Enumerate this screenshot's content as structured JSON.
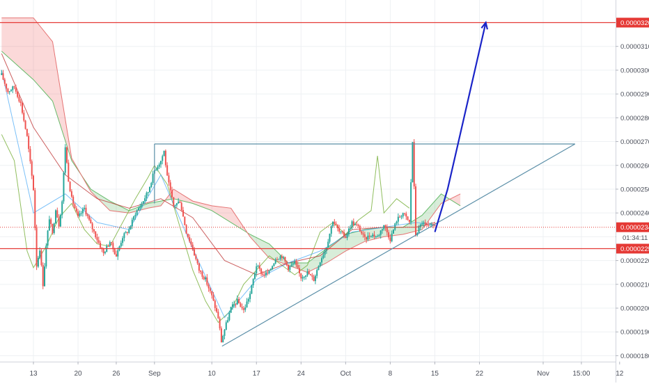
{
  "chart_data": {
    "type": "candlestick",
    "symbol_quote": "BTC",
    "y_axis": {
      "position": "right",
      "ylim": [
        1.775e-05,
        3.295e-05
      ],
      "ticks": [
        "0.00003200",
        "0.00003100",
        "0.00003000",
        "0.00002900",
        "0.00002800",
        "0.00002700",
        "0.00002600",
        "0.00002500",
        "0.00002400",
        "0.00002340",
        "0.00002300",
        "0.00002250",
        "0.00002200",
        "0.00002100",
        "0.00002000",
        "0.00001900",
        "0.00001800"
      ],
      "tick_values": [
        3.2e-05,
        3.1e-05,
        3e-05,
        2.9e-05,
        2.8e-05,
        2.7e-05,
        2.6e-05,
        2.5e-05,
        2.4e-05,
        2.34e-05,
        2.3e-05,
        2.25e-05,
        2.2e-05,
        2.1e-05,
        2e-05,
        1.9e-05,
        1.8e-05
      ],
      "highlighted": [
        {
          "label": "0.00003200",
          "value": 3.2e-05,
          "color": "#e53935"
        },
        {
          "label": "0.00002340",
          "value": 2.34e-05,
          "color": "#e53935"
        },
        {
          "label": "0.00002250",
          "value": 2.25e-05,
          "color": "#e53935"
        }
      ],
      "countdown_label": "01:34:11"
    },
    "x_axis": {
      "ticks": [
        {
          "label": "13",
          "day": 0
        },
        {
          "label": "20",
          "day": 7
        },
        {
          "label": "26",
          "day": 13
        },
        {
          "label": "Sep",
          "day": 19
        },
        {
          "label": "10",
          "day": 28
        },
        {
          "label": "17",
          "day": 35
        },
        {
          "label": "24",
          "day": 42
        },
        {
          "label": "Oct",
          "day": 49
        },
        {
          "label": "8",
          "day": 56
        },
        {
          "label": "15",
          "day": 63
        },
        {
          "label": "22",
          "day": 70
        },
        {
          "label": "Nov",
          "day": 80
        },
        {
          "label": "15:00",
          "day": 86
        },
        {
          "label": "12",
          "day": 92
        }
      ]
    },
    "grid": true,
    "price_series": [
      [
        -5.0,
        2.98e-05
      ],
      [
        -4.0,
        2.91e-05
      ],
      [
        -3.0,
        2.93e-05
      ],
      [
        -2.0,
        2.86e-05
      ],
      [
        -1.0,
        2.72e-05
      ],
      [
        0.0,
        2.5e-05
      ],
      [
        0.5,
        2.18e-05
      ],
      [
        1.0,
        2.25e-05
      ],
      [
        1.5,
        2.1e-05
      ],
      [
        2.0,
        2.26e-05
      ],
      [
        2.5,
        2.38e-05
      ],
      [
        3.0,
        2.31e-05
      ],
      [
        3.5,
        2.42e-05
      ],
      [
        4.0,
        2.35e-05
      ],
      [
        4.5,
        2.45e-05
      ],
      [
        5.0,
        2.68e-05
      ],
      [
        5.5,
        2.54e-05
      ],
      [
        6.0,
        2.46e-05
      ],
      [
        7.0,
        2.38e-05
      ],
      [
        8.0,
        2.42e-05
      ],
      [
        9.0,
        2.35e-05
      ],
      [
        10.0,
        2.29e-05
      ],
      [
        11.0,
        2.23e-05
      ],
      [
        12.0,
        2.28e-05
      ],
      [
        13.0,
        2.22e-05
      ],
      [
        14.0,
        2.3e-05
      ],
      [
        15.0,
        2.33e-05
      ],
      [
        16.0,
        2.4e-05
      ],
      [
        17.0,
        2.44e-05
      ],
      [
        18.0,
        2.49e-05
      ],
      [
        19.0,
        2.58e-05
      ],
      [
        20.0,
        2.62e-05
      ],
      [
        20.5,
        2.66e-05
      ],
      [
        21.0,
        2.55e-05
      ],
      [
        22.0,
        2.43e-05
      ],
      [
        23.0,
        2.45e-05
      ],
      [
        24.0,
        2.32e-05
      ],
      [
        25.0,
        2.25e-05
      ],
      [
        26.0,
        2.16e-05
      ],
      [
        27.0,
        2.12e-05
      ],
      [
        28.0,
        2.05e-05
      ],
      [
        29.0,
        1.96e-05
      ],
      [
        29.5,
        1.86e-05
      ],
      [
        30.0,
        1.91e-05
      ],
      [
        31.0,
        2e-05
      ],
      [
        32.0,
        2.03e-05
      ],
      [
        33.0,
        1.99e-05
      ],
      [
        34.0,
        2.06e-05
      ],
      [
        35.0,
        2.18e-05
      ],
      [
        36.0,
        2.14e-05
      ],
      [
        37.0,
        2.15e-05
      ],
      [
        38.0,
        2.21e-05
      ],
      [
        39.0,
        2.22e-05
      ],
      [
        40.0,
        2.17e-05
      ],
      [
        41.0,
        2.19e-05
      ],
      [
        42.0,
        2.13e-05
      ],
      [
        43.0,
        2.15e-05
      ],
      [
        44.0,
        2.12e-05
      ],
      [
        45.0,
        2.2e-05
      ],
      [
        46.0,
        2.26e-05
      ],
      [
        47.0,
        2.37e-05
      ],
      [
        48.0,
        2.32e-05
      ],
      [
        49.0,
        2.3e-05
      ],
      [
        50.0,
        2.36e-05
      ],
      [
        51.0,
        2.34e-05
      ],
      [
        52.0,
        2.29e-05
      ],
      [
        53.0,
        2.31e-05
      ],
      [
        54.0,
        2.3e-05
      ],
      [
        55.0,
        2.35e-05
      ],
      [
        56.0,
        2.29e-05
      ],
      [
        57.0,
        2.37e-05
      ],
      [
        58.0,
        2.4e-05
      ],
      [
        59.0,
        2.36e-05
      ],
      [
        59.5,
        2.7e-05
      ],
      [
        60.0,
        2.31e-05
      ],
      [
        61.0,
        2.36e-05
      ],
      [
        62.0,
        2.34e-05
      ],
      [
        63.0,
        2.35e-05
      ]
    ],
    "ichimoku_span_a": [
      [
        -5.0,
        3.08e-05
      ],
      [
        0.0,
        2.96e-05
      ],
      [
        3.0,
        2.87e-05
      ],
      [
        6.0,
        2.62e-05
      ],
      [
        9.0,
        2.5e-05
      ],
      [
        12.0,
        2.45e-05
      ],
      [
        15.0,
        2.41e-05
      ],
      [
        18.0,
        2.44e-05
      ],
      [
        20.0,
        2.45e-05
      ],
      [
        22.0,
        2.46e-05
      ],
      [
        25.0,
        2.44e-05
      ],
      [
        28.0,
        2.41e-05
      ],
      [
        31.0,
        2.36e-05
      ],
      [
        34.0,
        2.31e-05
      ],
      [
        37.0,
        2.27e-05
      ],
      [
        40.0,
        2.19e-05
      ],
      [
        43.0,
        2.19e-05
      ],
      [
        46.0,
        2.25e-05
      ],
      [
        49.0,
        2.31e-05
      ],
      [
        52.0,
        2.33e-05
      ],
      [
        55.0,
        2.34e-05
      ],
      [
        58.0,
        2.34e-05
      ],
      [
        61.0,
        2.39e-05
      ],
      [
        64.0,
        2.48e-05
      ],
      [
        67.0,
        2.43e-05
      ]
    ],
    "ichimoku_span_b": [
      [
        -5.0,
        3.22e-05
      ],
      [
        0.0,
        3.22e-05
      ],
      [
        3.0,
        3.12e-05
      ],
      [
        6.0,
        2.63e-05
      ],
      [
        9.0,
        2.49e-05
      ],
      [
        12.0,
        2.41e-05
      ],
      [
        15.0,
        2.4e-05
      ],
      [
        18.0,
        2.42e-05
      ],
      [
        20.0,
        2.43e-05
      ],
      [
        22.0,
        2.5e-05
      ],
      [
        25.0,
        2.45e-05
      ],
      [
        28.0,
        2.43e-05
      ],
      [
        31.0,
        2.42e-05
      ],
      [
        34.0,
        2.3e-05
      ],
      [
        37.0,
        2.21e-05
      ],
      [
        40.0,
        2.18e-05
      ],
      [
        43.0,
        2.15e-05
      ],
      [
        46.0,
        2.19e-05
      ],
      [
        49.0,
        2.24e-05
      ],
      [
        52.0,
        2.28e-05
      ],
      [
        55.0,
        2.3e-05
      ],
      [
        58.0,
        2.31e-05
      ],
      [
        61.0,
        2.33e-05
      ],
      [
        64.0,
        2.44e-05
      ],
      [
        67.0,
        2.48e-05
      ]
    ],
    "lagging_span": [
      [
        -5.0,
        2.73e-05
      ],
      [
        -3.0,
        2.62e-05
      ],
      [
        -1.0,
        2.24e-05
      ],
      [
        0.0,
        2.17e-05
      ],
      [
        2.0,
        2.26e-05
      ],
      [
        4.0,
        2.38e-05
      ],
      [
        6.0,
        2.44e-05
      ],
      [
        8.0,
        2.33e-05
      ],
      [
        10.0,
        2.27e-05
      ],
      [
        12.0,
        2.26e-05
      ],
      [
        14.0,
        2.36e-05
      ],
      [
        16.0,
        2.46e-05
      ],
      [
        18.0,
        2.55e-05
      ],
      [
        19.0,
        2.6e-05
      ],
      [
        21.0,
        2.52e-05
      ],
      [
        23.0,
        2.34e-05
      ],
      [
        25.0,
        2.16e-05
      ],
      [
        27.0,
        2.03e-05
      ],
      [
        29.0,
        1.94e-05
      ],
      [
        31.0,
        1.99e-05
      ],
      [
        33.0,
        2.1e-05
      ],
      [
        35.0,
        2.16e-05
      ],
      [
        37.0,
        2.22e-05
      ],
      [
        39.0,
        2.18e-05
      ],
      [
        41.0,
        2.14e-05
      ],
      [
        43.0,
        2.18e-05
      ],
      [
        45.0,
        2.32e-05
      ],
      [
        47.0,
        2.36e-05
      ],
      [
        49.0,
        2.31e-05
      ],
      [
        51.0,
        2.37e-05
      ],
      [
        53.0,
        2.41e-05
      ],
      [
        54.0,
        2.64e-05
      ],
      [
        55.0,
        2.4e-05
      ],
      [
        57.0,
        2.46e-05
      ],
      [
        59.0,
        2.42e-05
      ]
    ],
    "kijun_sen": [
      [
        -5.0,
        3.07e-05
      ],
      [
        0.0,
        2.76e-05
      ],
      [
        5.0,
        2.56e-05
      ],
      [
        10.0,
        2.46e-05
      ],
      [
        15.0,
        2.42e-05
      ],
      [
        20.0,
        2.46e-05
      ],
      [
        25.0,
        2.38e-05
      ],
      [
        30.0,
        2.2e-05
      ],
      [
        35.0,
        2.14e-05
      ],
      [
        40.0,
        2.19e-05
      ],
      [
        45.0,
        2.22e-05
      ],
      [
        50.0,
        2.33e-05
      ],
      [
        55.0,
        2.34e-05
      ],
      [
        60.0,
        2.34e-05
      ],
      [
        63.0,
        2.36e-05
      ]
    ],
    "tenkan_sen": [
      [
        -5.0,
        3e-05
      ],
      [
        0.0,
        2.4e-05
      ],
      [
        5.0,
        2.48e-05
      ],
      [
        10.0,
        2.36e-05
      ],
      [
        15.0,
        2.33e-05
      ],
      [
        20.0,
        2.56e-05
      ],
      [
        25.0,
        2.25e-05
      ],
      [
        30.0,
        1.96e-05
      ],
      [
        35.0,
        2.12e-05
      ],
      [
        40.0,
        2.19e-05
      ],
      [
        45.0,
        2.24e-05
      ],
      [
        50.0,
        2.32e-05
      ],
      [
        55.0,
        2.34e-05
      ],
      [
        60.0,
        2.36e-05
      ],
      [
        63.0,
        2.35e-05
      ]
    ],
    "drawings": {
      "resistance_lines": [
        {
          "value": 3.2e-05,
          "color": "#e53935"
        },
        {
          "value": 2.25e-05,
          "color": "#e53935"
        }
      ],
      "current_price_line": {
        "value": 2.34e-05,
        "color": "#e53935"
      },
      "triangle": {
        "top_value": 2.69e-05,
        "top_start_day": 19.0,
        "top_end_day": 85.0,
        "base_start": [
          29.6,
          1.84e-05
        ],
        "base_end": [
          85.0,
          2.69e-05
        ],
        "color": "#5b8fa8"
      },
      "forecast_arrow": {
        "points": [
          [
            63.0,
            2.32e-05
          ],
          [
            65.0,
            2.5e-05
          ],
          [
            71.0,
            3.2e-05
          ]
        ],
        "color": "#1a24c8"
      }
    }
  }
}
